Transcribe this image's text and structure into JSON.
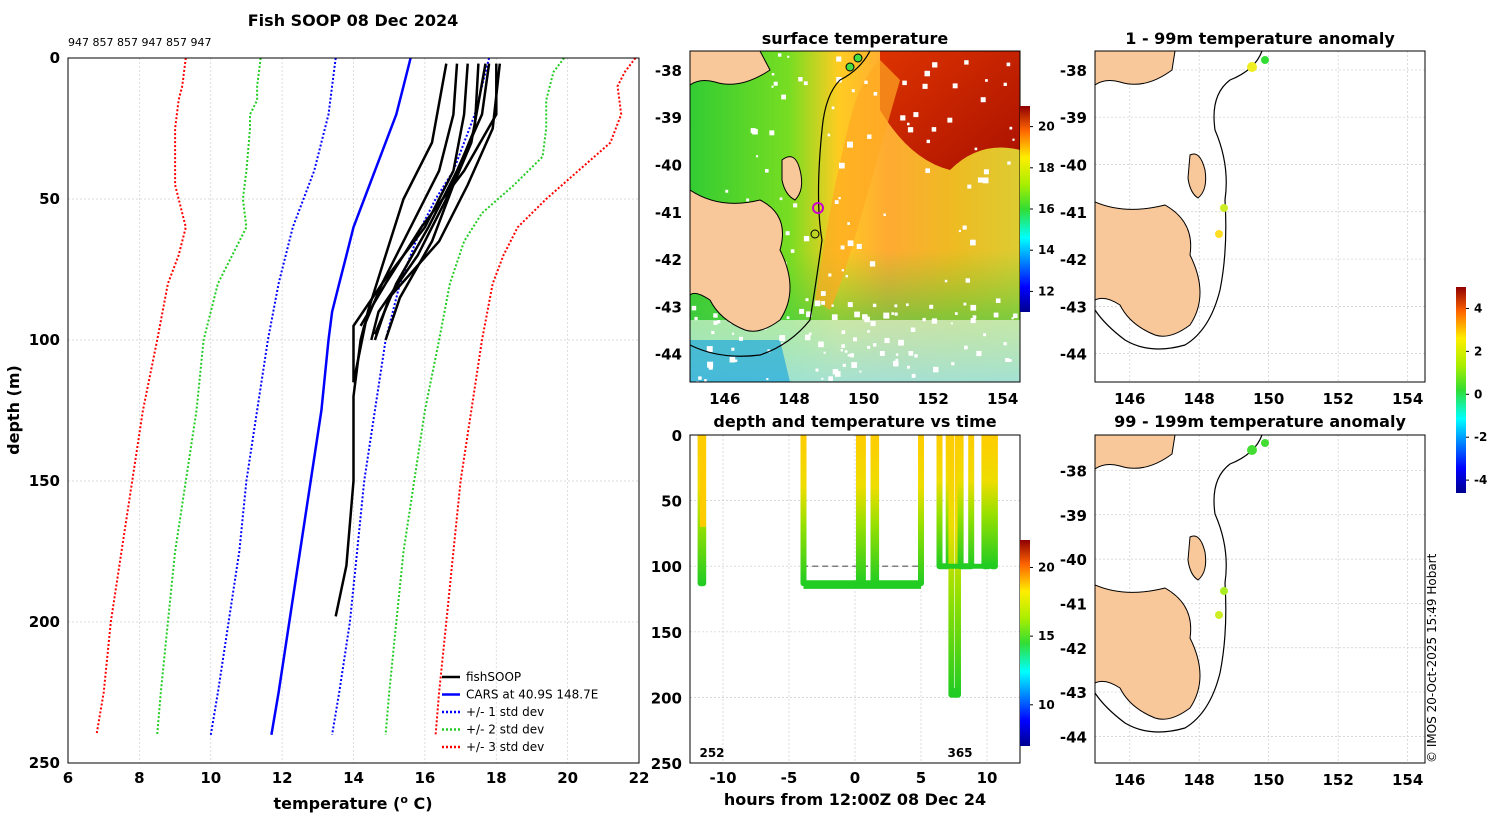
{
  "profile_panel": {
    "title": "Fish SOOP 08 Dec 2024",
    "top_label": "947 857 857 947 857 947",
    "chart_data": {
      "type": "line",
      "xlabel": "temperature (°C)",
      "ylabel": "depth (m)",
      "xlim": [
        6,
        22
      ],
      "ylim": [
        0,
        250
      ],
      "y_reversed": true,
      "xticks": [
        "6",
        "8",
        "10",
        "12",
        "14",
        "16",
        "18",
        "20",
        "22"
      ],
      "yticks": [
        "0",
        "50",
        "100",
        "150",
        "200",
        "250"
      ],
      "series": [
        {
          "name": "CARS at 40.9S 148.7E",
          "style": "solid",
          "color": "#0000ff",
          "depth": [
            0,
            10,
            20,
            30,
            40,
            50,
            60,
            70,
            80,
            90,
            100,
            125,
            150,
            175,
            200,
            225,
            240
          ],
          "temp": [
            15.6,
            15.4,
            15.2,
            14.9,
            14.6,
            14.3,
            14.0,
            13.8,
            13.6,
            13.4,
            13.3,
            13.1,
            12.8,
            12.5,
            12.2,
            11.9,
            11.7
          ]
        },
        {
          "name": "+/- 1 std dev",
          "style": "dotted",
          "color": "#0000ff",
          "depth": [
            0,
            20,
            40,
            60,
            80,
            100,
            125,
            150,
            175,
            200,
            225,
            240
          ],
          "temp": [
            13.5,
            13.3,
            12.9,
            12.3,
            11.9,
            11.6,
            11.3,
            11.0,
            10.8,
            10.5,
            10.2,
            10.0
          ]
        },
        {
          "name": "+1 std dev",
          "style": "dotted",
          "color": "#0000ff",
          "depth": [
            0,
            10,
            20,
            30,
            40,
            50,
            60,
            70,
            80,
            90,
            100,
            125,
            150,
            175,
            200,
            225,
            240
          ],
          "temp": [
            17.8,
            17.6,
            17.4,
            17.1,
            16.8,
            16.3,
            15.9,
            15.6,
            15.3,
            15.1,
            14.9,
            14.6,
            14.3,
            14.1,
            13.9,
            13.6,
            13.4
          ]
        },
        {
          "name": "+/- 2 std dev",
          "style": "dotted",
          "color": "#22cc22",
          "depth": [
            0,
            10,
            15,
            20,
            25,
            40,
            50,
            60,
            65,
            80,
            100,
            125,
            150,
            175,
            200,
            225,
            240
          ],
          "temp": [
            11.4,
            11.3,
            11.3,
            11.1,
            11.1,
            11.0,
            10.9,
            11.0,
            10.8,
            10.2,
            9.8,
            9.6,
            9.3,
            9.0,
            8.8,
            8.6,
            8.5
          ]
        },
        {
          "name": "+2 std dev",
          "style": "dotted",
          "color": "#22cc22",
          "depth": [
            0,
            5,
            15,
            25,
            35,
            45,
            55,
            65,
            80,
            100,
            125,
            150,
            175,
            200,
            225,
            240
          ],
          "temp": [
            19.9,
            19.6,
            19.4,
            19.4,
            19.3,
            18.5,
            17.6,
            17.1,
            16.7,
            16.4,
            16.0,
            15.7,
            15.4,
            15.2,
            15.0,
            14.9
          ]
        },
        {
          "name": "+/- 3 std dev",
          "style": "dotted",
          "color": "#ff0000",
          "depth": [
            0,
            10,
            15,
            25,
            35,
            45,
            55,
            60,
            70,
            80,
            100,
            125,
            150,
            175,
            200,
            225,
            240
          ],
          "temp": [
            9.3,
            9.2,
            9.1,
            9.0,
            9.0,
            9.0,
            9.2,
            9.3,
            9.1,
            8.8,
            8.5,
            8.1,
            7.8,
            7.5,
            7.2,
            7.0,
            6.8
          ]
        },
        {
          "name": "+3 std dev",
          "style": "dotted",
          "color": "#ff0000",
          "depth": [
            0,
            5,
            10,
            20,
            30,
            40,
            50,
            60,
            70,
            80,
            100,
            125,
            150,
            175,
            200,
            225,
            240
          ],
          "temp": [
            21.9,
            21.6,
            21.4,
            21.5,
            21.2,
            20.3,
            19.4,
            18.6,
            18.2,
            17.9,
            17.6,
            17.3,
            17.0,
            16.8,
            16.6,
            16.4,
            16.3
          ]
        },
        {
          "name": "fishSOOP",
          "style": "solid",
          "color": "#000000",
          "casts": [
            {
              "depth": [
                2,
                20,
                40,
                60,
                80,
                95,
                100,
                120,
                150,
                180,
                198
              ],
              "temp": [
                16.9,
                16.8,
                16.4,
                15.6,
                14.8,
                14.3,
                14.2,
                14.0,
                14.0,
                13.8,
                13.5
              ]
            },
            {
              "depth": [
                2,
                20,
                40,
                60,
                80,
                95,
                115
              ],
              "temp": [
                17.2,
                17.1,
                16.8,
                16.0,
                14.8,
                14.0,
                14.0
              ]
            },
            {
              "depth": [
                2,
                20,
                40,
                60,
                80,
                98
              ],
              "temp": [
                17.8,
                17.6,
                16.9,
                16.1,
                15.2,
                14.6
              ]
            },
            {
              "depth": [
                2,
                25,
                50,
                70,
                90,
                100
              ],
              "temp": [
                17.5,
                17.4,
                16.6,
                15.8,
                14.7,
                14.5
              ]
            },
            {
              "depth": [
                2,
                20,
                40,
                60,
                80,
                95
              ],
              "temp": [
                18.0,
                18.0,
                17.1,
                15.9,
                14.9,
                14.2
              ]
            },
            {
              "depth": [
                2,
                30,
                45,
                65,
                85,
                100
              ],
              "temp": [
                17.7,
                17.3,
                16.8,
                16.2,
                15.3,
                14.9
              ]
            },
            {
              "depth": [
                2,
                30,
                50,
                70,
                90,
                115
              ],
              "temp": [
                16.6,
                16.2,
                15.4,
                14.9,
                14.4,
                14.0
              ]
            },
            {
              "depth": [
                2,
                25,
                45,
                65,
                85,
                100
              ],
              "temp": [
                18.1,
                17.9,
                17.2,
                16.4,
                15.0,
                14.6
              ]
            }
          ]
        }
      ],
      "legend": [
        "fishSOOP",
        "CARS at 40.9S 148.7E",
        "+/- 1 std dev",
        "+/- 2 std dev",
        "+/- 3 std dev"
      ],
      "legend_position": "bottom-right"
    }
  },
  "sst_panel": {
    "title": "surface temperature",
    "chart_data": {
      "type": "heatmap",
      "xticks": [
        "146",
        "148",
        "150",
        "152",
        "154"
      ],
      "yticks": [
        "-38",
        "-39",
        "-40",
        "-41",
        "-42",
        "-43",
        "-44"
      ],
      "colorbar_ticks": [
        "20",
        "18",
        "16",
        "14",
        "12"
      ],
      "colorbar_range": [
        11,
        21
      ]
    }
  },
  "time_panel": {
    "title": "depth and temperature vs time",
    "chart_data": {
      "type": "scatter",
      "xlabel": "hours from 12:00Z 08 Dec 24",
      "xticks": [
        "-10",
        "-5",
        "0",
        "5",
        "10"
      ],
      "yticks": [
        "0",
        "50",
        "100",
        "150",
        "200",
        "250"
      ],
      "xlim": [
        -12.5,
        12.5
      ],
      "ylim": [
        0,
        250
      ],
      "colorbar_ticks": [
        "20",
        "15",
        "10"
      ],
      "colorbar_range": [
        7,
        22
      ],
      "annotations": [
        "252",
        "365"
      ],
      "target_depth_line": 100
    }
  },
  "anomaly_top": {
    "title": "1 - 99m temperature anomaly",
    "xticks": [
      "146",
      "148",
      "150",
      "152",
      "154"
    ],
    "yticks": [
      "-38",
      "-39",
      "-40",
      "-41",
      "-42",
      "-43",
      "-44"
    ]
  },
  "anomaly_bottom": {
    "title": "99 - 199m temperature anomaly",
    "xticks": [
      "146",
      "148",
      "150",
      "152",
      "154"
    ],
    "yticks": [
      "-38",
      "-39",
      "-40",
      "-41",
      "-42",
      "-43",
      "-44"
    ]
  },
  "anomaly_colorbar": {
    "ticks": [
      "4",
      "2",
      "0",
      "-2",
      "-4"
    ]
  },
  "credit": "© IMOS 20-Oct-2025 15:49 Hobart"
}
